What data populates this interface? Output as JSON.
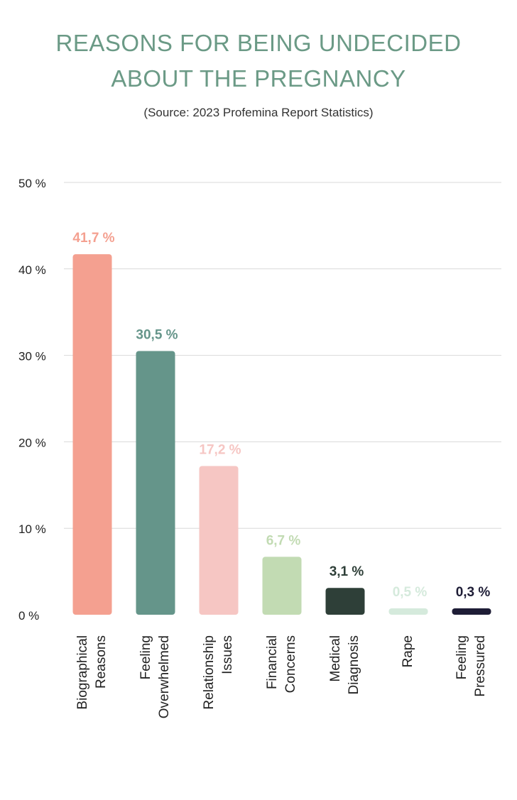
{
  "chart_data": {
    "type": "bar",
    "title_line1": "REASONS FOR BEING UNDECIDED",
    "title_line2": "ABOUT THE PREGNANCY",
    "subtitle": "(Source:  2023 Profemina Report Statistics)",
    "ylim": [
      0,
      50
    ],
    "yticks": [
      {
        "value": 0,
        "label": "0 %"
      },
      {
        "value": 10,
        "label": "10 %"
      },
      {
        "value": 20,
        "label": "20 %"
      },
      {
        "value": 30,
        "label": "30 %"
      },
      {
        "value": 40,
        "label": "40 %"
      },
      {
        "value": 50,
        "label": "50 %"
      }
    ],
    "grid": true,
    "bars": [
      {
        "line1": "Biographical",
        "line2": "Reasons",
        "value": 41.7,
        "label": "41,7 %",
        "color": "#f4a090",
        "label_color": "#f4a090"
      },
      {
        "line1": "Feeling",
        "line2": "Overwhelmed",
        "value": 30.5,
        "label": "30,5 %",
        "color": "#65958a",
        "label_color": "#65958a"
      },
      {
        "line1": "Relationship",
        "line2": "Issues",
        "value": 17.2,
        "label": "17,2 %",
        "color": "#f6c6c3",
        "label_color": "#f6c6c3"
      },
      {
        "line1": "Financial",
        "line2": "Concerns",
        "value": 6.7,
        "label": "6,7 %",
        "color": "#c2dbb3",
        "label_color": "#c2dbb3"
      },
      {
        "line1": "Medical",
        "line2": "Diagnosis",
        "value": 3.1,
        "label": "3,1 %",
        "color": "#2e3f38",
        "label_color": "#2e3f38"
      },
      {
        "line1": "Rape",
        "line2": "",
        "value": 0.5,
        "label": "0,5 %",
        "color": "#d5eadc",
        "label_color": "#d5eadc"
      },
      {
        "line1": "Feeling",
        "line2": "Pressured",
        "value": 0.3,
        "label": "0,3 %",
        "color": "#1e1d36",
        "label_color": "#1e1d36"
      }
    ]
  }
}
